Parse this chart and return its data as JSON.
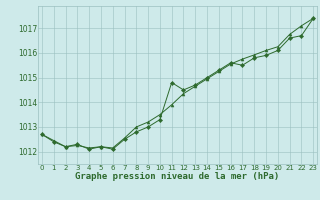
{
  "x": [
    0,
    1,
    2,
    3,
    4,
    5,
    6,
    7,
    8,
    9,
    10,
    11,
    12,
    13,
    14,
    15,
    16,
    17,
    18,
    19,
    20,
    21,
    22,
    23
  ],
  "series_jagged": [
    1012.7,
    1012.4,
    1012.2,
    1012.3,
    1012.1,
    1012.2,
    1012.1,
    1012.5,
    1012.8,
    1013.0,
    1013.3,
    1014.8,
    1014.5,
    1014.7,
    1015.0,
    1015.3,
    1015.6,
    1015.5,
    1015.8,
    1015.9,
    1016.1,
    1016.6,
    1016.7,
    1017.4
  ],
  "series_smooth": [
    1012.7,
    1012.45,
    1012.2,
    1012.25,
    1012.15,
    1012.2,
    1012.15,
    1012.55,
    1013.0,
    1013.2,
    1013.5,
    1013.9,
    1014.35,
    1014.65,
    1014.95,
    1015.25,
    1015.55,
    1015.75,
    1015.92,
    1016.1,
    1016.25,
    1016.75,
    1017.1,
    1017.4
  ],
  "line_color": "#2d6a2d",
  "marker_color": "#2d6a2d",
  "bg_color": "#ceeaea",
  "grid_color": "#9bbfbf",
  "ylabel_ticks": [
    1012,
    1013,
    1014,
    1015,
    1016,
    1017
  ],
  "xlabel": "Graphe pression niveau de la mer (hPa)",
  "ylim_min": 1011.5,
  "ylim_max": 1017.9,
  "xlim_min": -0.3,
  "xlim_max": 23.3,
  "label_fontsize": 5.5,
  "xlabel_fontsize": 6.5
}
